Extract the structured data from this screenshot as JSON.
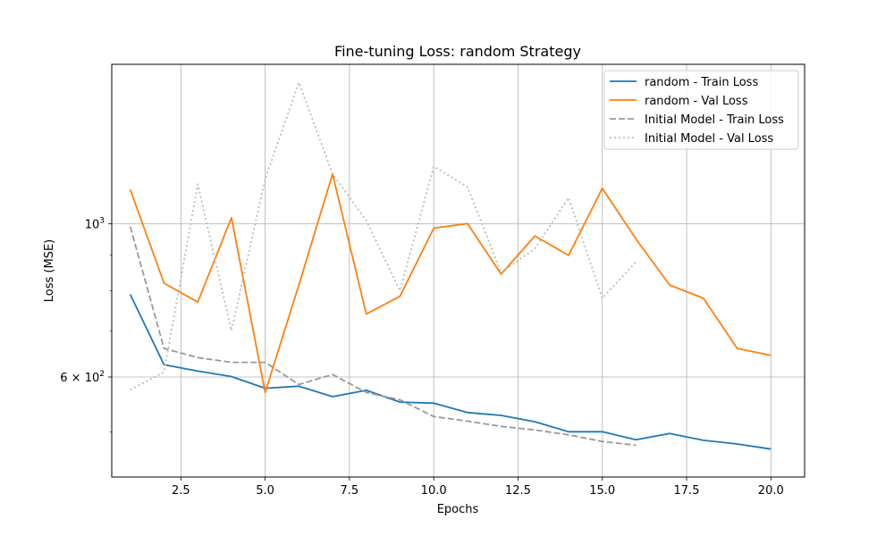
{
  "chart_data": {
    "type": "line",
    "title": "Fine-tuning Loss: random Strategy",
    "xlabel": "Epochs",
    "ylabel": "Loss (MSE)",
    "xlim": [
      0.45,
      21.0
    ],
    "ylim": [
      430,
      1700
    ],
    "yscale": "log",
    "grid": true,
    "legend_position": "top-right",
    "x_ticks": [
      2.5,
      5.0,
      7.5,
      10.0,
      12.5,
      15.0,
      17.5,
      20.0
    ],
    "x_tick_labels": [
      "2.5",
      "5.0",
      "7.5",
      "10.0",
      "12.5",
      "15.0",
      "17.5",
      "20.0"
    ],
    "y_ticks": [
      {
        "value": 1000,
        "base": "10",
        "exp": "3",
        "prefix": ""
      },
      {
        "value": 600,
        "base": "10",
        "exp": "2",
        "prefix": "6 × "
      }
    ],
    "series": [
      {
        "name": "random - Train Loss",
        "color": "#1f77b4",
        "dash": "solid",
        "x": [
          1,
          2,
          3,
          4,
          5,
          6,
          7,
          8,
          9,
          10,
          11,
          12,
          13,
          14,
          15,
          16,
          17,
          18,
          19,
          20
        ],
        "values": [
          790,
          625,
          612,
          601,
          578,
          582,
          562,
          574,
          552,
          550,
          533,
          528,
          517,
          500,
          500,
          487,
          497,
          486,
          480,
          472
        ]
      },
      {
        "name": "random - Val Loss",
        "color": "#ff7f0e",
        "dash": "solid",
        "x": [
          1,
          2,
          3,
          4,
          5,
          6,
          7,
          8,
          9,
          10,
          11,
          12,
          13,
          14,
          15,
          16,
          17,
          18,
          19,
          20
        ],
        "values": [
          1120,
          820,
          770,
          1020,
          570,
          815,
          1180,
          740,
          785,
          985,
          1000,
          845,
          960,
          900,
          1125,
          950,
          815,
          780,
          660,
          645
        ]
      },
      {
        "name": "Initial Model - Train Loss",
        "color": "#999999",
        "dash": "dashed",
        "x": [
          1,
          2,
          3,
          4,
          5,
          6,
          7,
          8,
          9,
          10,
          11,
          12,
          13,
          14,
          15,
          16
        ],
        "values": [
          990,
          660,
          640,
          630,
          630,
          585,
          605,
          570,
          556,
          526,
          518,
          509,
          503,
          495,
          484,
          478
        ]
      },
      {
        "name": "Initial Model - Val Loss",
        "color": "#bbbbbb",
        "dash": "dotted",
        "x": [
          1,
          2,
          3,
          4,
          5,
          6,
          7,
          8,
          9,
          10,
          11,
          12,
          13,
          14,
          15,
          16
        ],
        "values": [
          575,
          610,
          1140,
          700,
          1160,
          1600,
          1180,
          1010,
          800,
          1210,
          1130,
          850,
          920,
          1090,
          780,
          880
        ]
      }
    ]
  }
}
